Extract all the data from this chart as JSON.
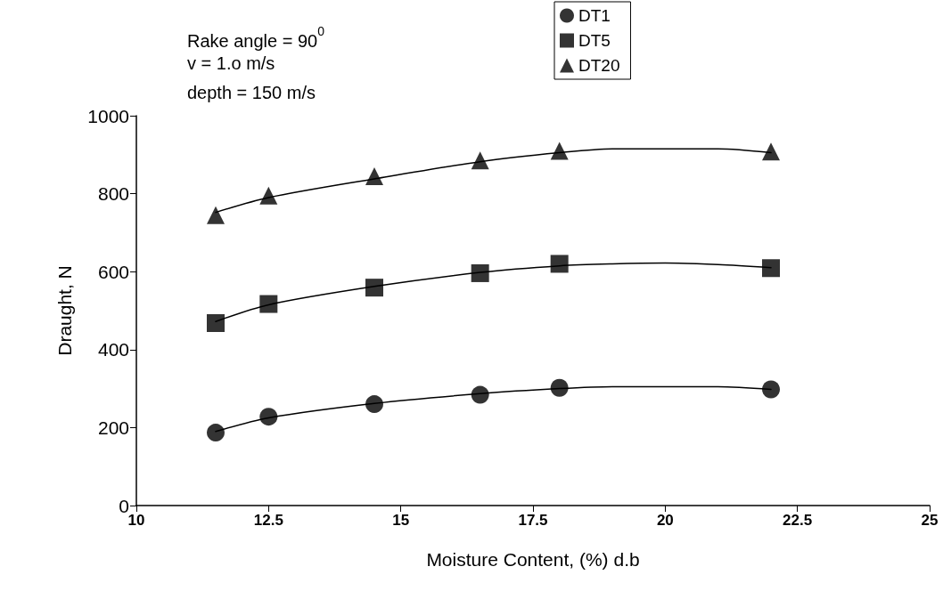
{
  "chart_data": {
    "type": "scatter",
    "xlabel": "Moisture Content, (%) d.b",
    "ylabel": "Draught, N",
    "annotations": [
      "Rake angle = 90$^{0}$",
      "v = 1.o m/s",
      "depth = 150 m/s"
    ],
    "x": [
      11.5,
      12.5,
      14.5,
      16.5,
      18,
      22
    ],
    "series": [
      {
        "name": "DT1",
        "color": "#000000",
        "marker": "circle",
        "values": [
          187,
          228,
          260,
          284,
          302,
          298
        ]
      },
      {
        "name": "DT5",
        "color": "#000000",
        "marker": "square",
        "values": [
          468,
          517,
          559,
          596,
          620,
          609
        ]
      },
      {
        "name": "DT20",
        "color": "#000000",
        "marker": "triangle",
        "values": [
          745,
          795,
          845,
          885,
          910,
          908
        ]
      },
      {
        "type": "line",
        "color": "#000000",
        "marker": "none",
        "x": [
          11.5,
          12.5,
          14.5,
          16.5,
          18,
          19,
          20,
          21,
          22
        ],
        "values": [
          190,
          225,
          262,
          287,
          300,
          305,
          305,
          305,
          298
        ]
      },
      {
        "type": "line",
        "color": "#000000",
        "marker": "none",
        "x": [
          11.5,
          12.5,
          14.5,
          16.5,
          18,
          19,
          20,
          21,
          22
        ],
        "values": [
          472,
          515,
          562,
          598,
          615,
          620,
          622,
          618,
          610
        ]
      },
      {
        "type": "line",
        "color": "#000000",
        "marker": "none",
        "x": [
          11.5,
          12.5,
          14.5,
          16.5,
          18,
          19,
          20,
          21,
          22
        ],
        "values": [
          752,
          790,
          838,
          882,
          905,
          915,
          915,
          915,
          905
        ]
      }
    ],
    "xlim": [
      10,
      25
    ],
    "xticks": [
      10,
      12.5,
      15,
      17.5,
      20,
      22.5,
      25
    ],
    "ylim": [
      0,
      1000
    ],
    "yticks": [
      0,
      200,
      400,
      600,
      800,
      1000
    ],
    "grid": false,
    "legend": "top"
  }
}
